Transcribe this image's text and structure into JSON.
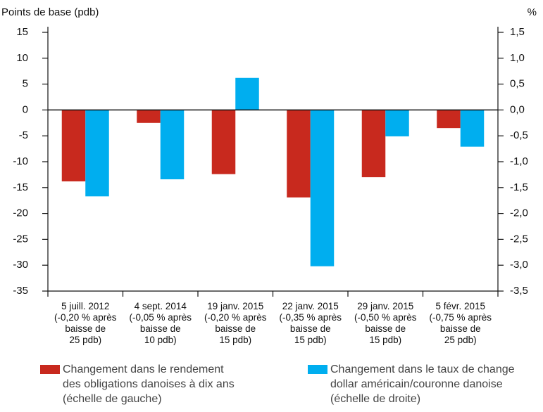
{
  "chart_data": {
    "type": "bar",
    "y_label": "Points de base (pdb)",
    "y2_label": "%",
    "categories": [
      "5 juill. 2012\n(-0,20 % après\nbaisse de\n25 pdb)",
      "4 sept. 2014\n(-0,05 % après\nbaisse de\n10 pdb)",
      "19 janv. 2015\n(-0,20 % après\nbaisse de\n15 pdb)",
      "22 janv. 2015\n(-0,35 % après\nbaisse de\n15 pdb)",
      "29 janv. 2015\n(-0,50 % après\nbaisse de\n15 pdb)",
      "5 févr. 2015\n(-0,75 % après\nbaisse de\n25 pdb)"
    ],
    "series": [
      {
        "name": "Changement dans le rendement\ndes obligations danoises à dix ans\n(échelle de gauche)",
        "color": "#c8291e",
        "axis": "y",
        "values": [
          -13.8,
          -2.5,
          -12.4,
          -16.9,
          -13.0,
          -3.5
        ]
      },
      {
        "name": "Changement dans le taux de change\ndollar américain/couronne danoise\n(échelle de droite)",
        "color": "#00aeef",
        "axis": "y2",
        "values": [
          -1.67,
          -1.34,
          0.62,
          -3.02,
          -0.51,
          -0.71
        ]
      }
    ],
    "ylim": [
      -35,
      15
    ],
    "yticks": [
      -35,
      -30,
      -25,
      -20,
      -15,
      -10,
      -5,
      0,
      5,
      10,
      15
    ],
    "y2lim": [
      -3.5,
      1.5
    ],
    "y2ticks": [
      {
        "value": -3.5,
        "label": "-3,5"
      },
      {
        "value": -3.0,
        "label": "-3,0"
      },
      {
        "value": -2.5,
        "label": "-2,5"
      },
      {
        "value": -2.0,
        "label": "-2,0"
      },
      {
        "value": -1.5,
        "label": "-1,5"
      },
      {
        "value": -1.0,
        "label": "-1,0"
      },
      {
        "value": -0.5,
        "label": "-0,5"
      },
      {
        "value": 0,
        "label": "0,0"
      },
      {
        "value": 0.5,
        "label": "0,5"
      },
      {
        "value": 1.0,
        "label": "1,0"
      },
      {
        "value": 1.5,
        "label": "1,5"
      }
    ],
    "legend": "bottom"
  }
}
